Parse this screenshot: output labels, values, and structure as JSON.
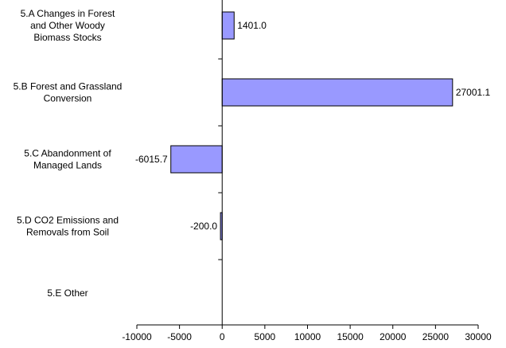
{
  "chart_data": {
    "type": "bar",
    "orientation": "horizontal",
    "categories": [
      [
        "5.A Changes in Forest",
        "and Other Woody",
        "Biomass Stocks"
      ],
      [
        "5.B Forest and Grassland",
        "Conversion"
      ],
      [
        "5.C Abandonment of",
        "Managed Lands"
      ],
      [
        "5.D CO2 Emissions and",
        "Removals from Soil"
      ],
      [
        "5.E Other"
      ]
    ],
    "values": [
      1401.0,
      27001.1,
      -6015.7,
      -200.0,
      null
    ],
    "value_labels": [
      "1401.0",
      "27001.1",
      "-6015.7",
      "-200.0",
      ""
    ],
    "xlim": [
      -10000,
      30000
    ],
    "xticks": [
      -10000,
      -5000,
      0,
      5000,
      10000,
      15000,
      20000,
      25000,
      30000
    ],
    "xtick_labels": [
      "-10000",
      "-5000",
      "0",
      "5000",
      "10000",
      "15000",
      "20000",
      "25000",
      "30000"
    ],
    "grid": false,
    "legend": "none",
    "bar_color": "#9999ff",
    "bar_edge_color": "#000000"
  }
}
